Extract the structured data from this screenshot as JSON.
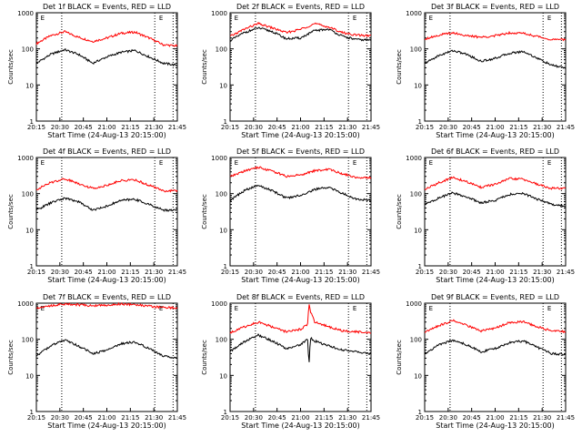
{
  "chart_data": [
    {
      "type": "line",
      "title": "Det 1f BLACK = Events, RED = LLD",
      "xlabel": "Start Time (24-Aug-13 20:15:00)",
      "ylabel": "Counts/sec",
      "yscale": "log",
      "ylim": [
        1,
        1000
      ],
      "xlim": [
        0,
        100
      ],
      "x_ticks": [
        "20:15",
        "20:30",
        "20:45",
        "21:00",
        "21:15",
        "21:30",
        "21:45"
      ],
      "y_ticks": [
        "1",
        "10",
        "100",
        "1000"
      ],
      "markers": [
        "E",
        "E"
      ],
      "series": [
        {
          "color": "#ff0000",
          "x": [
            0,
            10,
            20,
            30,
            40,
            50,
            60,
            70,
            80,
            90,
            100
          ],
          "values": [
            140,
            230,
            300,
            210,
            160,
            200,
            270,
            290,
            200,
            130,
            120
          ]
        },
        {
          "color": "#000000",
          "x": [
            0,
            10,
            20,
            30,
            40,
            50,
            60,
            70,
            80,
            90,
            100
          ],
          "values": [
            40,
            70,
            95,
            70,
            40,
            60,
            80,
            90,
            60,
            40,
            35
          ]
        }
      ]
    },
    {
      "type": "line",
      "title": "Det 2f BLACK = Events, RED = LLD",
      "xlabel": "Start Time (24-Aug-13 20:15:00)",
      "ylabel": "Counts/sec",
      "yscale": "log",
      "ylim": [
        1,
        1000
      ],
      "xlim": [
        0,
        100
      ],
      "x_ticks": [
        "20:15",
        "20:30",
        "20:45",
        "21:00",
        "21:15",
        "21:30",
        "21:45"
      ],
      "y_ticks": [
        "1",
        "10",
        "100",
        "1000"
      ],
      "markers": [
        "E",
        "E"
      ],
      "series": [
        {
          "color": "#ff0000",
          "x": [
            0,
            10,
            20,
            30,
            40,
            50,
            60,
            70,
            80,
            90,
            100
          ],
          "values": [
            220,
            350,
            500,
            380,
            280,
            350,
            500,
            400,
            280,
            240,
            230
          ]
        },
        {
          "color": "#000000",
          "x": [
            0,
            10,
            20,
            30,
            40,
            50,
            60,
            70,
            80,
            90,
            100
          ],
          "values": [
            170,
            280,
            380,
            300,
            190,
            200,
            320,
            350,
            220,
            180,
            175
          ]
        }
      ]
    },
    {
      "type": "line",
      "title": "Det 3f BLACK = Events, RED = LLD",
      "xlabel": "Start Time (24-Aug-13 20:15:00)",
      "ylabel": "Counts/sec",
      "yscale": "log",
      "ylim": [
        1,
        1000
      ],
      "xlim": [
        0,
        100
      ],
      "x_ticks": [
        "20:15",
        "20:30",
        "20:45",
        "21:00",
        "21:15",
        "21:30",
        "21:45"
      ],
      "y_ticks": [
        "1",
        "10",
        "100",
        "1000"
      ],
      "markers": [
        "E",
        "E"
      ],
      "series": [
        {
          "color": "#ff0000",
          "x": [
            0,
            10,
            20,
            30,
            40,
            50,
            60,
            70,
            80,
            90,
            100
          ],
          "values": [
            190,
            240,
            280,
            230,
            210,
            230,
            280,
            270,
            220,
            180,
            180
          ]
        },
        {
          "color": "#000000",
          "x": [
            0,
            10,
            20,
            30,
            40,
            50,
            60,
            70,
            80,
            90,
            100
          ],
          "values": [
            40,
            65,
            90,
            70,
            45,
            55,
            75,
            85,
            55,
            35,
            30
          ]
        }
      ]
    },
    {
      "type": "line",
      "title": "Det 4f BLACK = Events, RED = LLD",
      "xlabel": "Start Time (24-Aug-13 20:15:00)",
      "ylabel": "Counts/sec",
      "yscale": "log",
      "ylim": [
        1,
        1000
      ],
      "xlim": [
        0,
        100
      ],
      "x_ticks": [
        "20:15",
        "20:30",
        "20:45",
        "21:00",
        "21:15",
        "21:30",
        "21:45"
      ],
      "y_ticks": [
        "1",
        "10",
        "100",
        "1000"
      ],
      "markers": [
        "E",
        "E"
      ],
      "series": [
        {
          "color": "#ff0000",
          "x": [
            0,
            10,
            20,
            30,
            40,
            50,
            60,
            70,
            80,
            90,
            100
          ],
          "values": [
            130,
            200,
            260,
            190,
            140,
            170,
            230,
            240,
            170,
            120,
            120
          ]
        },
        {
          "color": "#000000",
          "x": [
            0,
            10,
            20,
            30,
            40,
            50,
            60,
            70,
            80,
            90,
            100
          ],
          "values": [
            35,
            55,
            75,
            60,
            35,
            45,
            65,
            70,
            50,
            35,
            35
          ]
        }
      ]
    },
    {
      "type": "line",
      "title": "Det 5f BLACK = Events, RED = LLD",
      "xlabel": "Start Time (24-Aug-13 20:15:00)",
      "ylabel": "Counts/sec",
      "yscale": "log",
      "ylim": [
        1,
        1000
      ],
      "xlim": [
        0,
        100
      ],
      "x_ticks": [
        "20:15",
        "20:30",
        "20:45",
        "21:00",
        "21:15",
        "21:30",
        "21:45"
      ],
      "y_ticks": [
        "1",
        "10",
        "100",
        "1000"
      ],
      "markers": [
        "E",
        "E"
      ],
      "series": [
        {
          "color": "#ff0000",
          "x": [
            0,
            10,
            20,
            30,
            40,
            50,
            60,
            70,
            80,
            90,
            100
          ],
          "values": [
            290,
            420,
            540,
            420,
            300,
            330,
            430,
            470,
            350,
            280,
            280
          ]
        },
        {
          "color": "#000000",
          "x": [
            0,
            10,
            20,
            30,
            40,
            50,
            60,
            70,
            80,
            90,
            100
          ],
          "values": [
            65,
            120,
            170,
            120,
            75,
            90,
            130,
            150,
            100,
            70,
            65
          ]
        }
      ]
    },
    {
      "type": "line",
      "title": "Det 6f BLACK = Events, RED = LLD",
      "xlabel": "Start Time (24-Aug-13 20:15:00)",
      "ylabel": "Counts/sec",
      "yscale": "log",
      "ylim": [
        1,
        1000
      ],
      "xlim": [
        0,
        100
      ],
      "x_ticks": [
        "20:15",
        "20:30",
        "20:45",
        "21:00",
        "21:15",
        "21:30",
        "21:45"
      ],
      "y_ticks": [
        "1",
        "10",
        "100",
        "1000"
      ],
      "markers": [
        "E",
        "E"
      ],
      "series": [
        {
          "color": "#ff0000",
          "x": [
            0,
            10,
            20,
            30,
            40,
            50,
            60,
            70,
            80,
            90,
            100
          ],
          "values": [
            130,
            200,
            280,
            210,
            150,
            180,
            260,
            250,
            180,
            140,
            140
          ]
        },
        {
          "color": "#000000",
          "x": [
            0,
            10,
            20,
            30,
            40,
            50,
            60,
            70,
            80,
            90,
            100
          ],
          "values": [
            50,
            75,
            105,
            80,
            55,
            65,
            95,
            100,
            70,
            50,
            45
          ]
        }
      ]
    },
    {
      "type": "line",
      "title": "Det 7f BLACK = Events, RED = LLD",
      "xlabel": "Start Time (24-Aug-13 20:15:00)",
      "ylabel": "Counts/sec",
      "yscale": "log",
      "ylim": [
        1,
        1000
      ],
      "xlim": [
        0,
        100
      ],
      "x_ticks": [
        "20:15",
        "20:30",
        "20:45",
        "21:00",
        "21:15",
        "21:30",
        "21:45"
      ],
      "y_ticks": [
        "1",
        "10",
        "100",
        "1000"
      ],
      "markers": [
        "E",
        "E"
      ],
      "series": [
        {
          "color": "#ff0000",
          "x": [
            0,
            10,
            20,
            30,
            40,
            50,
            60,
            70,
            80,
            90,
            100
          ],
          "values": [
            750,
            850,
            950,
            900,
            850,
            880,
            950,
            900,
            830,
            760,
            740
          ]
        },
        {
          "color": "#000000",
          "x": [
            0,
            10,
            20,
            30,
            40,
            50,
            60,
            70,
            80,
            90,
            100
          ],
          "values": [
            35,
            65,
            95,
            65,
            40,
            50,
            75,
            85,
            55,
            35,
            30
          ]
        }
      ]
    },
    {
      "type": "line",
      "title": "Det 8f BLACK = Events, RED = LLD",
      "xlabel": "Start Time (24-Aug-13 20:15:00)",
      "ylabel": "Counts/sec",
      "yscale": "log",
      "ylim": [
        1,
        1000
      ],
      "xlim": [
        0,
        100
      ],
      "x_ticks": [
        "20:15",
        "20:30",
        "20:45",
        "21:00",
        "21:15",
        "21:30",
        "21:45"
      ],
      "y_ticks": [
        "1",
        "10",
        "100",
        "1000"
      ],
      "markers": [
        "E",
        "E"
      ],
      "series": [
        {
          "color": "#ff0000",
          "x": [
            0,
            10,
            20,
            30,
            40,
            50,
            55,
            56,
            57,
            60,
            70,
            80,
            90,
            100
          ],
          "values": [
            150,
            220,
            300,
            220,
            160,
            190,
            260,
            1000,
            600,
            300,
            220,
            170,
            160,
            155
          ]
        },
        {
          "color": "#000000",
          "x": [
            0,
            10,
            20,
            30,
            40,
            50,
            55,
            56,
            57,
            60,
            70,
            80,
            90,
            100
          ],
          "values": [
            45,
            85,
            130,
            90,
            55,
            70,
            100,
            20,
            110,
            90,
            65,
            50,
            45,
            40
          ]
        }
      ]
    },
    {
      "type": "line",
      "title": "Det 9f BLACK = Events, RED = LLD",
      "xlabel": "Start Time (24-Aug-13 20:15:00)",
      "ylabel": "Counts/sec",
      "yscale": "log",
      "ylim": [
        1,
        1000
      ],
      "xlim": [
        0,
        100
      ],
      "x_ticks": [
        "20:15",
        "20:30",
        "20:45",
        "21:00",
        "21:15",
        "21:30",
        "21:45"
      ],
      "y_ticks": [
        "1",
        "10",
        "100",
        "1000"
      ],
      "markers": [
        "E",
        "E"
      ],
      "series": [
        {
          "color": "#ff0000",
          "x": [
            0,
            10,
            20,
            30,
            40,
            50,
            60,
            70,
            80,
            90,
            100
          ],
          "values": [
            160,
            240,
            330,
            240,
            170,
            200,
            290,
            310,
            220,
            170,
            165
          ]
        },
        {
          "color": "#000000",
          "x": [
            0,
            10,
            20,
            30,
            40,
            50,
            60,
            70,
            80,
            90,
            100
          ],
          "values": [
            40,
            70,
            95,
            70,
            45,
            55,
            80,
            90,
            60,
            40,
            38
          ]
        }
      ]
    }
  ]
}
